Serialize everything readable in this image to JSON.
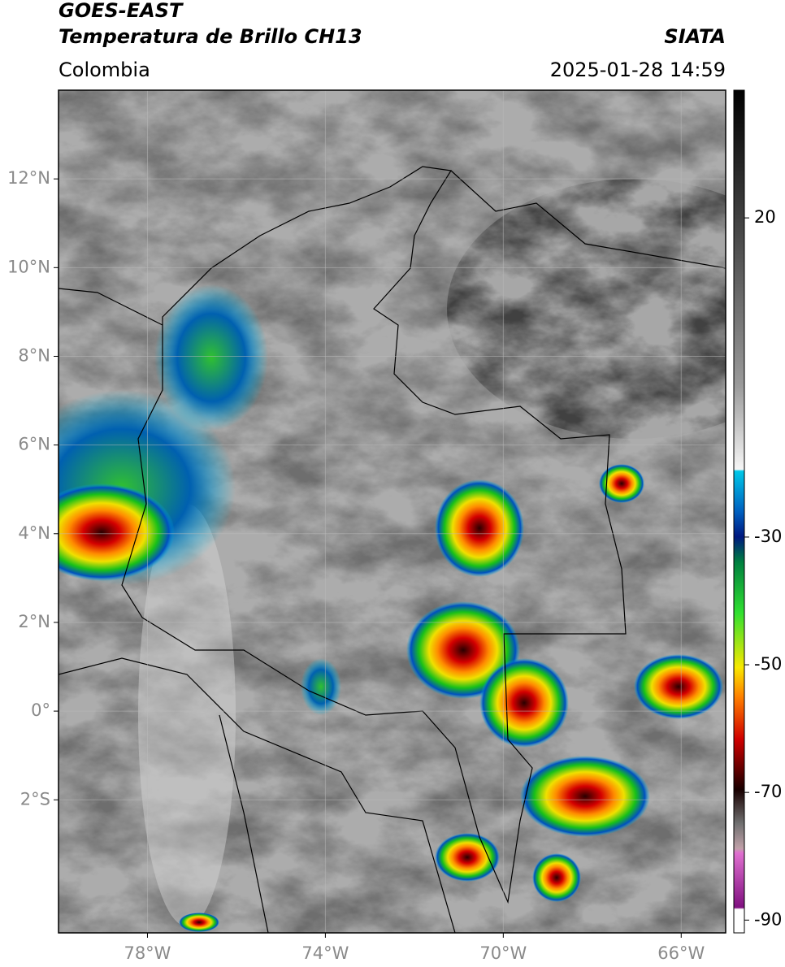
{
  "header": {
    "title": "GOES-EAST",
    "subtitle": "Temperatura de Brillo CH13",
    "source": "SIATA",
    "region": "Colombia",
    "datetime": "2025-01-28 14:59"
  },
  "map": {
    "xlim": [
      -80,
      -65
    ],
    "ylim": [
      -5,
      14
    ],
    "xticks": [
      {
        "value": -78,
        "label": "78°W"
      },
      {
        "value": -74,
        "label": "74°W"
      },
      {
        "value": -70,
        "label": "70°W"
      },
      {
        "value": -66,
        "label": "66°W"
      }
    ],
    "yticks": [
      {
        "value": 12,
        "label": "12°N"
      },
      {
        "value": 10,
        "label": "10°N"
      },
      {
        "value": 8,
        "label": "8°N"
      },
      {
        "value": 6,
        "label": "6°N"
      },
      {
        "value": 4,
        "label": "4°N"
      },
      {
        "value": 2,
        "label": "2°N"
      },
      {
        "value": 0,
        "label": "0°"
      },
      {
        "value": -2,
        "label": "2°S"
      }
    ]
  },
  "colorbar": {
    "lim": [
      -92,
      40
    ],
    "ticks": [
      20,
      -30,
      -50,
      -70,
      -90
    ]
  }
}
